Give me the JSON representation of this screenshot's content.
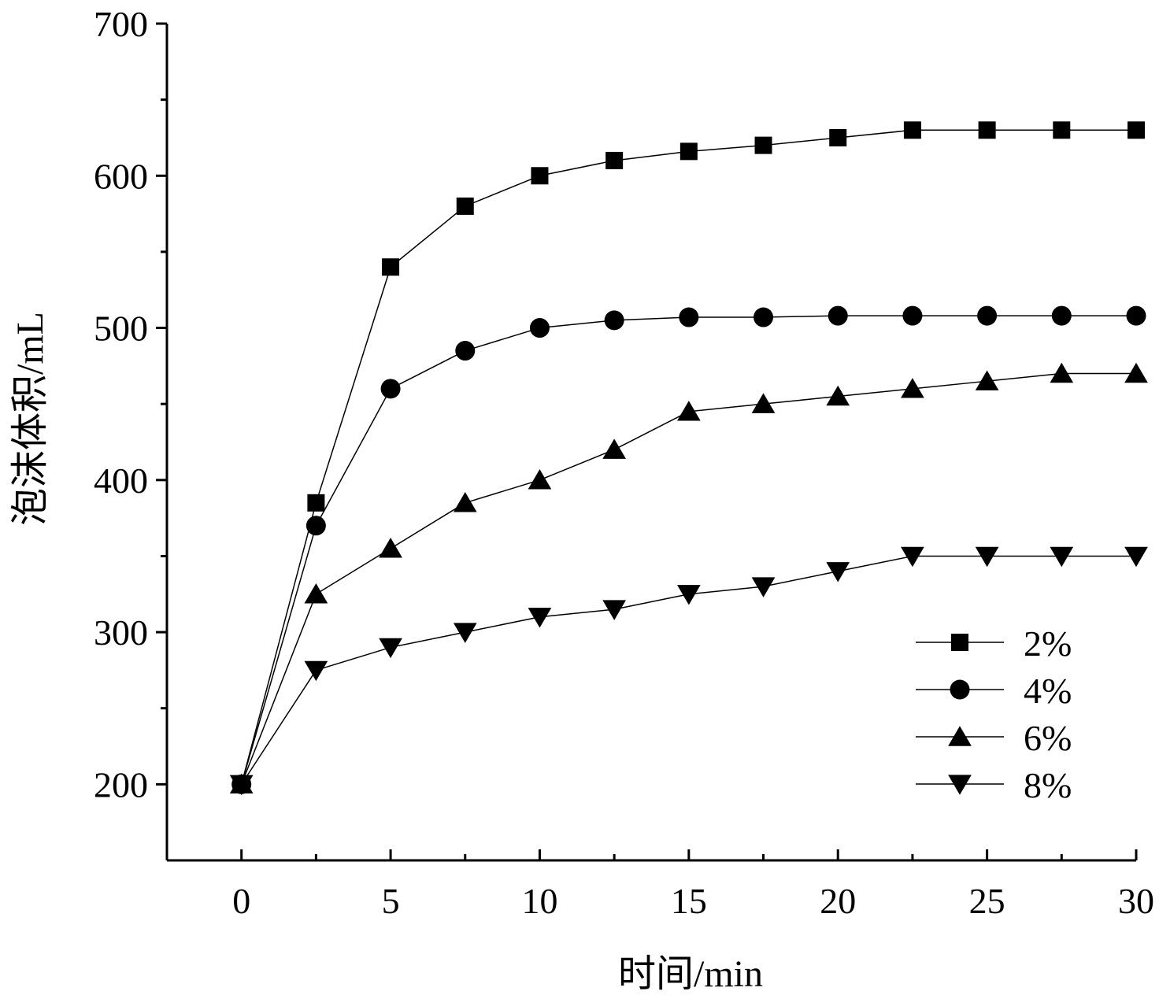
{
  "chart_data": {
    "type": "line",
    "title": "",
    "xlabel": "时间/min",
    "ylabel": "泡沫体积/mL",
    "xlim": [
      -2.5,
      30
    ],
    "ylim": [
      150,
      700
    ],
    "xticks": [
      0,
      5,
      10,
      15,
      20,
      25,
      30
    ],
    "xtick_labels": [
      "0",
      "5",
      "10",
      "15",
      "20",
      "25",
      "30"
    ],
    "x_minor_ticks": [
      2.5,
      7.5,
      12.5,
      17.5,
      22.5,
      27.5
    ],
    "yticks": [
      200,
      300,
      400,
      500,
      600,
      700
    ],
    "ytick_labels": [
      "200",
      "300",
      "400",
      "500",
      "600",
      "700"
    ],
    "y_minor_ticks": [
      250,
      350,
      450,
      550,
      650
    ],
    "grid": false,
    "legend_position": "bottom-right",
    "x": [
      0,
      2.5,
      5,
      7.5,
      10,
      12.5,
      15,
      17.5,
      20,
      22.5,
      25,
      27.5,
      30
    ],
    "series": [
      {
        "name": "2%",
        "marker": "square",
        "color": "#000000",
        "values": [
          200,
          385,
          540,
          580,
          600,
          610,
          616,
          620,
          625,
          630,
          630,
          630,
          630
        ]
      },
      {
        "name": "4%",
        "marker": "circle",
        "color": "#000000",
        "values": [
          200,
          370,
          460,
          485,
          500,
          505,
          507,
          507,
          508,
          508,
          508,
          508,
          508
        ]
      },
      {
        "name": "6%",
        "marker": "triangle-up",
        "color": "#000000",
        "values": [
          200,
          325,
          355,
          385,
          400,
          420,
          445,
          450,
          455,
          460,
          465,
          470,
          470
        ]
      },
      {
        "name": "8%",
        "marker": "triangle-down",
        "color": "#000000",
        "values": [
          200,
          275,
          290,
          300,
          310,
          315,
          325,
          330,
          340,
          350,
          350,
          350,
          350
        ]
      }
    ]
  }
}
